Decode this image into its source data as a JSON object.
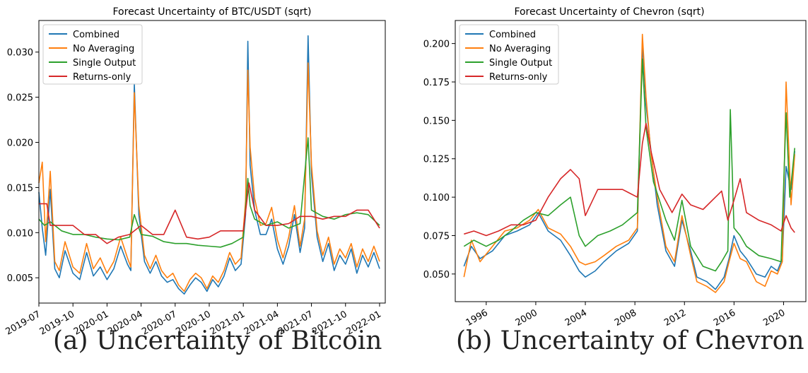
{
  "captions": {
    "a": "(a) Uncertainty of Bitcoin",
    "b": "(b) Uncertainty of Chevron"
  },
  "series_colors": {
    "Combined": "#1f77b4",
    "No Averaging": "#ff7f0e",
    "Single Output": "#2ca02c",
    "Returns-only": "#d62728"
  },
  "chart_data": [
    {
      "type": "line",
      "title": "Forecast Uncertainty of BTC/USDT (sqrt)",
      "xlabel": "",
      "ylabel": "",
      "xlim": [
        0,
        30.5
      ],
      "ylim": [
        0.0022,
        0.0335
      ],
      "yticks": [
        0.005,
        0.01,
        0.015,
        0.02,
        0.025,
        0.03
      ],
      "ytick_labels": [
        "0.005",
        "0.010",
        "0.015",
        "0.020",
        "0.025",
        "0.030"
      ],
      "xticks": [
        0,
        3,
        6,
        9,
        12,
        15,
        18,
        21,
        24,
        27,
        30
      ],
      "xtick_labels": [
        "2019-07",
        "2019-10",
        "2020-01",
        "2020-04",
        "2020-07",
        "2020-10",
        "2021-01",
        "2021-04",
        "2021-07",
        "2021-10",
        "2022-01"
      ],
      "legend": "top-left",
      "series": [
        {
          "name": "Combined",
          "x": [
            0,
            0.3,
            0.6,
            1,
            1.4,
            1.8,
            2.3,
            3,
            3.6,
            4.2,
            4.8,
            5.4,
            6,
            6.6,
            7.2,
            7.8,
            8.1,
            8.4,
            8.8,
            9.3,
            9.8,
            10.3,
            10.8,
            11.3,
            11.8,
            12.3,
            12.8,
            13.3,
            13.8,
            14.3,
            14.8,
            15.3,
            15.8,
            16.3,
            16.8,
            17.3,
            17.8,
            18.2,
            18.4,
            18.6,
            19,
            19.5,
            20,
            20.5,
            21,
            21.5,
            22,
            22.5,
            23,
            23.4,
            23.7,
            24,
            24.5,
            25,
            25.5,
            26,
            26.5,
            27,
            27.5,
            28,
            28.5,
            29,
            29.5,
            30
          ],
          "values": [
            0.0145,
            0.0105,
            0.0075,
            0.0148,
            0.006,
            0.005,
            0.008,
            0.0055,
            0.0048,
            0.0078,
            0.0052,
            0.0062,
            0.0048,
            0.006,
            0.0085,
            0.0065,
            0.0058,
            0.0265,
            0.012,
            0.0068,
            0.0055,
            0.0068,
            0.0052,
            0.0045,
            0.0048,
            0.0038,
            0.0032,
            0.0042,
            0.005,
            0.0045,
            0.0035,
            0.0048,
            0.004,
            0.0052,
            0.0072,
            0.0058,
            0.0065,
            0.012,
            0.0312,
            0.0175,
            0.0125,
            0.0098,
            0.0098,
            0.0115,
            0.0082,
            0.0065,
            0.0085,
            0.012,
            0.0078,
            0.0105,
            0.0318,
            0.0165,
            0.0095,
            0.0068,
            0.0088,
            0.0058,
            0.0075,
            0.0065,
            0.0082,
            0.0055,
            0.0075,
            0.0062,
            0.0078,
            0.006
          ]
        },
        {
          "name": "No Averaging",
          "x": [
            0,
            0.3,
            0.6,
            1,
            1.4,
            1.8,
            2.3,
            3,
            3.6,
            4.2,
            4.8,
            5.4,
            6,
            6.6,
            7.2,
            7.8,
            8.1,
            8.4,
            8.8,
            9.3,
            9.8,
            10.3,
            10.8,
            11.3,
            11.8,
            12.3,
            12.8,
            13.3,
            13.8,
            14.3,
            14.8,
            15.3,
            15.8,
            16.3,
            16.8,
            17.3,
            17.8,
            18.2,
            18.4,
            18.6,
            19,
            19.5,
            20,
            20.5,
            21,
            21.5,
            22,
            22.5,
            23,
            23.4,
            23.7,
            24,
            24.5,
            25,
            25.5,
            26,
            26.5,
            27,
            27.5,
            28,
            28.5,
            29,
            29.5,
            30
          ],
          "values": [
            0.0155,
            0.0178,
            0.009,
            0.0168,
            0.0068,
            0.0058,
            0.009,
            0.0062,
            0.0055,
            0.0088,
            0.006,
            0.0072,
            0.0055,
            0.0068,
            0.0095,
            0.0072,
            0.0062,
            0.0255,
            0.013,
            0.0075,
            0.006,
            0.0075,
            0.0058,
            0.005,
            0.0055,
            0.0042,
            0.0035,
            0.0048,
            0.0055,
            0.005,
            0.0038,
            0.0052,
            0.0045,
            0.0058,
            0.0078,
            0.0065,
            0.0072,
            0.0135,
            0.028,
            0.0195,
            0.0138,
            0.0108,
            0.011,
            0.0128,
            0.0092,
            0.0072,
            0.0095,
            0.013,
            0.0085,
            0.0115,
            0.0288,
            0.0175,
            0.0102,
            0.0075,
            0.0095,
            0.0065,
            0.0082,
            0.0072,
            0.0088,
            0.0062,
            0.0082,
            0.0068,
            0.0085,
            0.0068
          ]
        },
        {
          "name": "Single Output",
          "x": [
            0,
            0.5,
            1,
            2,
            3,
            4,
            5,
            6,
            7,
            8,
            8.4,
            9,
            10,
            11,
            12,
            13,
            14,
            15,
            16,
            17,
            18,
            18.4,
            18.6,
            19,
            20,
            21,
            22,
            23,
            23.7,
            24,
            25,
            26,
            27,
            28,
            29,
            30
          ],
          "values": [
            0.0115,
            0.0108,
            0.0112,
            0.0102,
            0.0098,
            0.0098,
            0.0095,
            0.0093,
            0.0092,
            0.0095,
            0.012,
            0.0098,
            0.0096,
            0.009,
            0.0088,
            0.0088,
            0.0086,
            0.0085,
            0.0084,
            0.0088,
            0.0095,
            0.016,
            0.013,
            0.0115,
            0.0108,
            0.0112,
            0.0105,
            0.011,
            0.0205,
            0.0125,
            0.0118,
            0.0115,
            0.012,
            0.0122,
            0.012,
            0.0108
          ]
        },
        {
          "name": "Returns-only",
          "x": [
            0,
            0.7,
            1,
            2,
            3,
            4,
            5,
            6,
            7,
            8,
            9,
            10,
            11,
            12,
            13,
            14,
            15,
            16,
            17,
            18,
            18.5,
            19,
            20,
            21,
            22,
            23,
            24,
            25,
            26,
            27,
            28,
            29,
            30
          ],
          "values": [
            0.0132,
            0.0132,
            0.0108,
            0.0108,
            0.0108,
            0.0098,
            0.0098,
            0.0088,
            0.0095,
            0.0098,
            0.0108,
            0.0098,
            0.0098,
            0.0125,
            0.0095,
            0.0093,
            0.0095,
            0.0102,
            0.0102,
            0.0102,
            0.0155,
            0.0125,
            0.0108,
            0.0108,
            0.011,
            0.0118,
            0.0118,
            0.0115,
            0.0118,
            0.0118,
            0.0125,
            0.0125,
            0.0105
          ]
        }
      ]
    },
    {
      "type": "line",
      "title": "Forecast Uncertainty of Chevron (sqrt)",
      "xlabel": "",
      "ylabel": "",
      "xlim": [
        1993.5,
        2021.8
      ],
      "ylim": [
        0.032,
        0.215
      ],
      "yticks": [
        0.05,
        0.075,
        0.1,
        0.125,
        0.15,
        0.175,
        0.2
      ],
      "ytick_labels": [
        "0.050",
        "0.075",
        "0.100",
        "0.125",
        "0.150",
        "0.175",
        "0.200"
      ],
      "xticks": [
        1996,
        2000,
        2004,
        2008,
        2012,
        2016,
        2020
      ],
      "xtick_labels": [
        "1996",
        "2000",
        "2004",
        "2008",
        "2012",
        "2016",
        "2020"
      ],
      "legend": "top-left",
      "series": [
        {
          "name": "Combined",
          "x": [
            1994.2,
            1994.8,
            1995.5,
            1996.5,
            1997.5,
            1998.5,
            1999.5,
            2000.2,
            2001,
            2002,
            2002.8,
            2003.5,
            2004,
            2004.8,
            2005.5,
            2006.5,
            2007.5,
            2008.2,
            2008.6,
            2008.9,
            2009.3,
            2009.8,
            2010.5,
            2011.2,
            2011.8,
            2012.5,
            2013,
            2013.8,
            2014.5,
            2015.2,
            2015.6,
            2016,
            2016.5,
            2017,
            2017.8,
            2018.5,
            2019,
            2019.5,
            2019.9,
            2020.2,
            2020.6,
            2020.9
          ],
          "values": [
            0.055,
            0.068,
            0.06,
            0.065,
            0.075,
            0.078,
            0.082,
            0.09,
            0.078,
            0.072,
            0.062,
            0.052,
            0.048,
            0.052,
            0.058,
            0.065,
            0.07,
            0.078,
            0.2,
            0.16,
            0.13,
            0.095,
            0.065,
            0.055,
            0.085,
            0.065,
            0.048,
            0.045,
            0.04,
            0.048,
            0.06,
            0.075,
            0.065,
            0.06,
            0.05,
            0.048,
            0.055,
            0.052,
            0.06,
            0.12,
            0.105,
            0.13
          ]
        },
        {
          "name": "No Averaging",
          "x": [
            1994.2,
            1994.8,
            1995.5,
            1996.5,
            1997.5,
            1998.5,
            1999.5,
            2000.2,
            2001,
            2002,
            2002.8,
            2003.5,
            2004,
            2004.8,
            2005.5,
            2006.5,
            2007.5,
            2008.2,
            2008.6,
            2008.9,
            2009.3,
            2009.8,
            2010.5,
            2011.2,
            2011.8,
            2012.5,
            2013,
            2013.8,
            2014.5,
            2015.2,
            2015.6,
            2016,
            2016.5,
            2017,
            2017.8,
            2018.5,
            2019,
            2019.5,
            2019.9,
            2020.2,
            2020.6,
            2020.9
          ],
          "values": [
            0.048,
            0.072,
            0.058,
            0.068,
            0.078,
            0.08,
            0.085,
            0.092,
            0.08,
            0.076,
            0.068,
            0.058,
            0.056,
            0.058,
            0.062,
            0.068,
            0.072,
            0.08,
            0.206,
            0.165,
            0.128,
            0.1,
            0.068,
            0.058,
            0.088,
            0.062,
            0.045,
            0.042,
            0.038,
            0.045,
            0.058,
            0.07,
            0.06,
            0.058,
            0.045,
            0.042,
            0.052,
            0.05,
            0.058,
            0.175,
            0.095,
            0.128
          ]
        },
        {
          "name": "Single Output",
          "x": [
            1994.2,
            1995,
            1996,
            1997,
            1998,
            1999,
            2000,
            2001,
            2002,
            2002.8,
            2003.5,
            2004,
            2005,
            2006,
            2007,
            2008.2,
            2008.6,
            2008.9,
            2009.5,
            2010.5,
            2011.2,
            2011.8,
            2012.5,
            2013.5,
            2014.5,
            2015,
            2015.5,
            2015.7,
            2016,
            2016.5,
            2017,
            2018,
            2019,
            2019.8,
            2020.2,
            2020.5,
            2020.9
          ],
          "values": [
            0.068,
            0.072,
            0.068,
            0.072,
            0.078,
            0.085,
            0.09,
            0.088,
            0.095,
            0.1,
            0.075,
            0.068,
            0.075,
            0.078,
            0.082,
            0.09,
            0.19,
            0.145,
            0.11,
            0.085,
            0.072,
            0.098,
            0.068,
            0.055,
            0.052,
            0.058,
            0.065,
            0.157,
            0.08,
            0.075,
            0.068,
            0.062,
            0.06,
            0.058,
            0.155,
            0.1,
            0.132
          ]
        },
        {
          "name": "Returns-only",
          "x": [
            1994.2,
            1995,
            1996,
            1997,
            1998,
            1999,
            2000,
            2001,
            2002,
            2002.8,
            2003.5,
            2004,
            2005,
            2006,
            2007,
            2008.2,
            2008.6,
            2008.9,
            2009.3,
            2010,
            2011,
            2011.8,
            2012.5,
            2013.5,
            2014.5,
            2015,
            2015.5,
            2016,
            2016.5,
            2017,
            2018,
            2019,
            2019.8,
            2020.2,
            2020.6,
            2020.9
          ],
          "values": [
            0.076,
            0.078,
            0.075,
            0.078,
            0.082,
            0.082,
            0.085,
            0.1,
            0.112,
            0.118,
            0.112,
            0.088,
            0.105,
            0.105,
            0.105,
            0.1,
            0.135,
            0.148,
            0.13,
            0.105,
            0.09,
            0.102,
            0.095,
            0.092,
            0.1,
            0.104,
            0.085,
            0.098,
            0.112,
            0.09,
            0.085,
            0.082,
            0.078,
            0.088,
            0.08,
            0.077
          ]
        }
      ]
    }
  ]
}
